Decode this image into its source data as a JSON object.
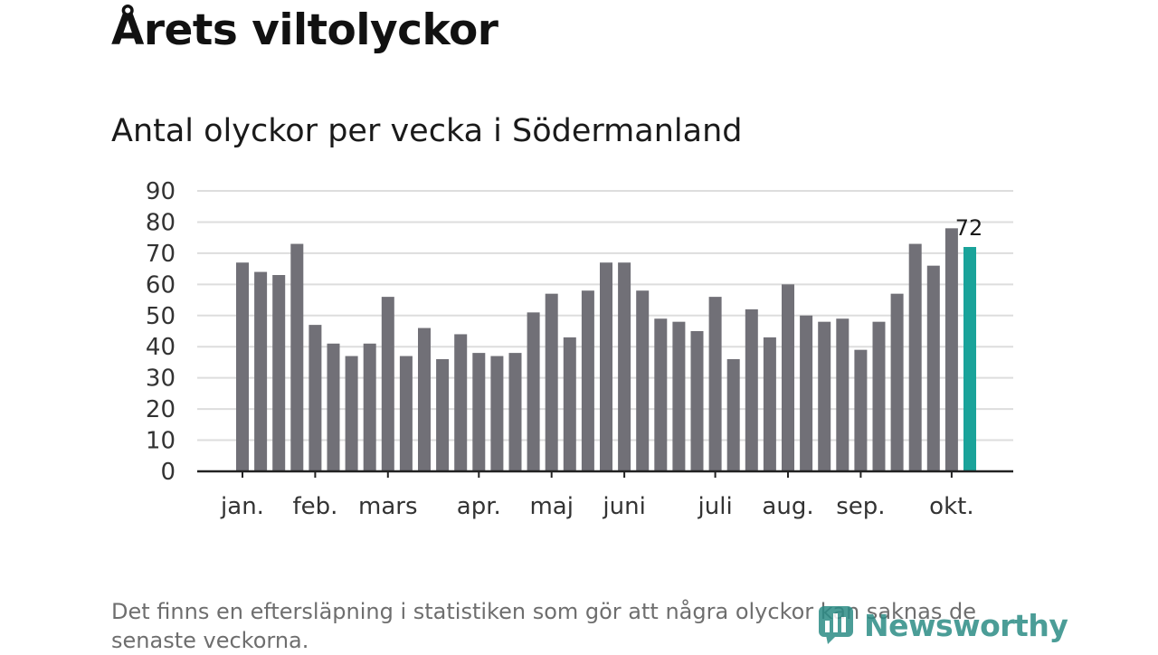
{
  "header": {
    "title": "Årets viltolyckor",
    "subtitle": "Antal olyckor per vecka i Södermanland"
  },
  "footnote": "Det finns en eftersläpning i statistiken som gör att några olyckor kan saknas de senaste veckorna.",
  "brand": {
    "name": "Newsworthy",
    "icon": "newsworthy-logo-icon"
  },
  "colors": {
    "bar": "#717077",
    "highlight": "#1aa39a",
    "grid": "#dddddd",
    "axis": "#222222"
  },
  "chart_data": {
    "type": "bar",
    "title": "Antal olyckor per vecka i Södermanland",
    "xlabel": "",
    "ylabel": "",
    "ylim": [
      0,
      90
    ],
    "yticks": [
      0,
      10,
      20,
      30,
      40,
      50,
      60,
      70,
      80,
      90
    ],
    "grid": true,
    "values": [
      67,
      64,
      63,
      73,
      47,
      41,
      37,
      41,
      56,
      37,
      46,
      36,
      44,
      38,
      37,
      38,
      51,
      57,
      43,
      58,
      67,
      67,
      58,
      49,
      48,
      45,
      56,
      36,
      52,
      43,
      60,
      50,
      48,
      49,
      39,
      48,
      57,
      73,
      66,
      78,
      72
    ],
    "highlight_index": 40,
    "highlight_label": "72",
    "month_labels": [
      {
        "label": "jan.",
        "week_index": 0
      },
      {
        "label": "feb.",
        "week_index": 4
      },
      {
        "label": "mars",
        "week_index": 8
      },
      {
        "label": "apr.",
        "week_index": 13
      },
      {
        "label": "maj",
        "week_index": 17
      },
      {
        "label": "juni",
        "week_index": 21
      },
      {
        "label": "juli",
        "week_index": 26
      },
      {
        "label": "aug.",
        "week_index": 30
      },
      {
        "label": "sep.",
        "week_index": 34
      },
      {
        "label": "okt.",
        "week_index": 39
      }
    ]
  }
}
